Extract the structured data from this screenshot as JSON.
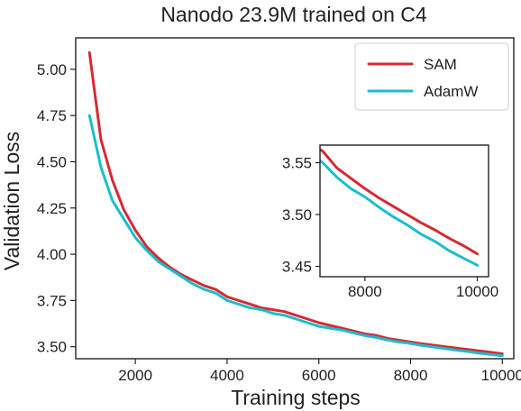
{
  "chart_data": {
    "type": "line",
    "title": "Nanodo 23.9M trained on C4",
    "xlabel": "Training steps",
    "ylabel": "Validation Loss",
    "xlim": [
      700,
      10250
    ],
    "ylim": [
      3.435,
      5.17
    ],
    "xticks": [
      2000,
      4000,
      6000,
      8000,
      10000
    ],
    "yticks": [
      3.5,
      3.75,
      4.0,
      4.25,
      4.5,
      4.75,
      5.0
    ],
    "xtick_labels": [
      "2000",
      "4000",
      "6000",
      "8000",
      "10000"
    ],
    "ytick_labels": [
      "3.50",
      "3.75",
      "4.00",
      "4.25",
      "4.50",
      "4.75",
      "5.00"
    ],
    "grid": false,
    "legend_position": "top-right",
    "series": [
      {
        "name": "SAM",
        "color": "#d62a33",
        "x": [
          1000,
          1250,
          1500,
          1750,
          2000,
          2250,
          2500,
          2750,
          3000,
          3250,
          3500,
          3750,
          4000,
          4250,
          4500,
          4750,
          5000,
          5250,
          5500,
          5750,
          6000,
          6250,
          6500,
          6750,
          7000,
          7250,
          7500,
          7750,
          8000,
          8250,
          8500,
          8750,
          9000,
          9250,
          9500,
          9750,
          10000
        ],
        "y": [
          5.09,
          4.62,
          4.4,
          4.24,
          4.13,
          4.04,
          3.98,
          3.93,
          3.89,
          3.86,
          3.83,
          3.81,
          3.77,
          3.75,
          3.73,
          3.71,
          3.7,
          3.69,
          3.67,
          3.65,
          3.63,
          3.615,
          3.6,
          3.585,
          3.57,
          3.561,
          3.545,
          3.535,
          3.525,
          3.516,
          3.508,
          3.5,
          3.492,
          3.485,
          3.477,
          3.47,
          3.462
        ]
      },
      {
        "name": "AdamW",
        "color": "#1cbdcd",
        "x": [
          1000,
          1250,
          1500,
          1750,
          2000,
          2250,
          2500,
          2750,
          3000,
          3250,
          3500,
          3750,
          4000,
          4250,
          4500,
          4750,
          5000,
          5250,
          5500,
          5750,
          6000,
          6250,
          6500,
          6750,
          7000,
          7250,
          7500,
          7750,
          8000,
          8250,
          8500,
          8750,
          9000,
          9250,
          9500,
          9750,
          10000
        ],
        "y": [
          4.75,
          4.47,
          4.29,
          4.19,
          4.09,
          4.02,
          3.96,
          3.92,
          3.88,
          3.84,
          3.81,
          3.79,
          3.75,
          3.73,
          3.71,
          3.7,
          3.68,
          3.67,
          3.65,
          3.63,
          3.61,
          3.6,
          3.59,
          3.575,
          3.56,
          3.55,
          3.536,
          3.525,
          3.517,
          3.507,
          3.498,
          3.49,
          3.481,
          3.474,
          3.465,
          3.458,
          3.451
        ]
      }
    ],
    "inset": {
      "xlim": [
        7200,
        10200
      ],
      "ylim": [
        3.44,
        3.567
      ],
      "xticks": [
        8000,
        10000
      ],
      "yticks": [
        3.45,
        3.5,
        3.55
      ],
      "xtick_labels": [
        "8000",
        "10000"
      ],
      "ytick_labels": [
        "3.45",
        "3.50",
        "3.55"
      ]
    }
  }
}
